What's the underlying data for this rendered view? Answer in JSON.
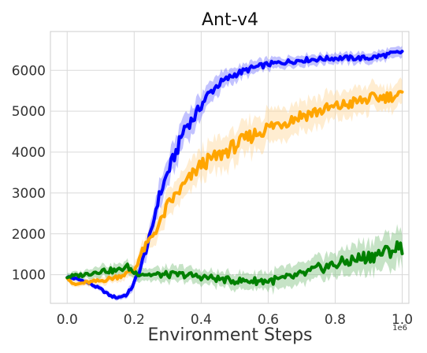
{
  "chart_data": {
    "type": "line",
    "title": "Ant-v4",
    "xlabel": "Environment Steps",
    "ylabel": "",
    "x_multiplier_label": "1e6",
    "xlim": [
      -0.05,
      1.02
    ],
    "ylim": [
      300,
      6950
    ],
    "x_ticks": [
      "0.0",
      "0.2",
      "0.4",
      "0.6",
      "0.8",
      "1.0"
    ],
    "x_tick_values": [
      0.0,
      0.2,
      0.4,
      0.6,
      0.8,
      1.0
    ],
    "y_ticks": [
      "1000",
      "2000",
      "3000",
      "4000",
      "5000",
      "6000"
    ],
    "y_tick_values": [
      1000,
      2000,
      3000,
      4000,
      5000,
      6000
    ],
    "grid": true,
    "legend": "none",
    "series": [
      {
        "color": "#0000ff",
        "band_color": "#7777ff",
        "x": [
          0.0,
          0.05,
          0.1,
          0.13,
          0.15,
          0.18,
          0.2,
          0.22,
          0.25,
          0.27,
          0.3,
          0.33,
          0.35,
          0.38,
          0.4,
          0.42,
          0.45,
          0.48,
          0.5,
          0.55,
          0.6,
          0.65,
          0.7,
          0.8,
          0.9,
          1.0
        ],
        "y": [
          950,
          850,
          650,
          480,
          440,
          520,
          800,
          1200,
          2000,
          2800,
          3500,
          4100,
          4600,
          4850,
          5150,
          5400,
          5650,
          5800,
          5900,
          6050,
          6150,
          6200,
          6250,
          6300,
          6300,
          6450
        ],
        "spread": [
          60,
          60,
          60,
          60,
          60,
          80,
          120,
          180,
          250,
          300,
          350,
          350,
          350,
          300,
          280,
          250,
          230,
          200,
          180,
          150,
          140,
          130,
          130,
          130,
          130,
          130
        ]
      },
      {
        "color": "#ffa500",
        "band_color": "#ffd699",
        "x": [
          0.0,
          0.02,
          0.05,
          0.1,
          0.15,
          0.2,
          0.22,
          0.25,
          0.28,
          0.3,
          0.35,
          0.4,
          0.45,
          0.5,
          0.55,
          0.6,
          0.65,
          0.7,
          0.75,
          0.8,
          0.85,
          0.9,
          0.95,
          1.0
        ],
        "y": [
          950,
          750,
          800,
          850,
          950,
          1100,
          1500,
          1900,
          2300,
          2700,
          3200,
          3700,
          3900,
          4150,
          4400,
          4600,
          4750,
          4900,
          5000,
          5100,
          5200,
          5300,
          5350,
          5400
        ],
        "spread": [
          80,
          80,
          80,
          100,
          120,
          150,
          200,
          250,
          300,
          320,
          350,
          380,
          400,
          400,
          400,
          400,
          380,
          380,
          350,
          330,
          330,
          320,
          300,
          300
        ]
      },
      {
        "color": "#008000",
        "band_color": "#80c080",
        "x": [
          0.0,
          0.05,
          0.1,
          0.15,
          0.18,
          0.2,
          0.25,
          0.3,
          0.35,
          0.4,
          0.45,
          0.5,
          0.55,
          0.6,
          0.65,
          0.7,
          0.75,
          0.8,
          0.85,
          0.9,
          0.95,
          1.0
        ],
        "y": [
          950,
          1000,
          1100,
          1100,
          1200,
          1050,
          1000,
          1000,
          1000,
          950,
          900,
          850,
          850,
          850,
          900,
          1000,
          1150,
          1250,
          1350,
          1450,
          1550,
          1700
        ],
        "spread": [
          100,
          100,
          150,
          150,
          150,
          150,
          150,
          180,
          180,
          180,
          180,
          180,
          200,
          220,
          250,
          250,
          280,
          300,
          350,
          380,
          400,
          420
        ]
      }
    ]
  }
}
